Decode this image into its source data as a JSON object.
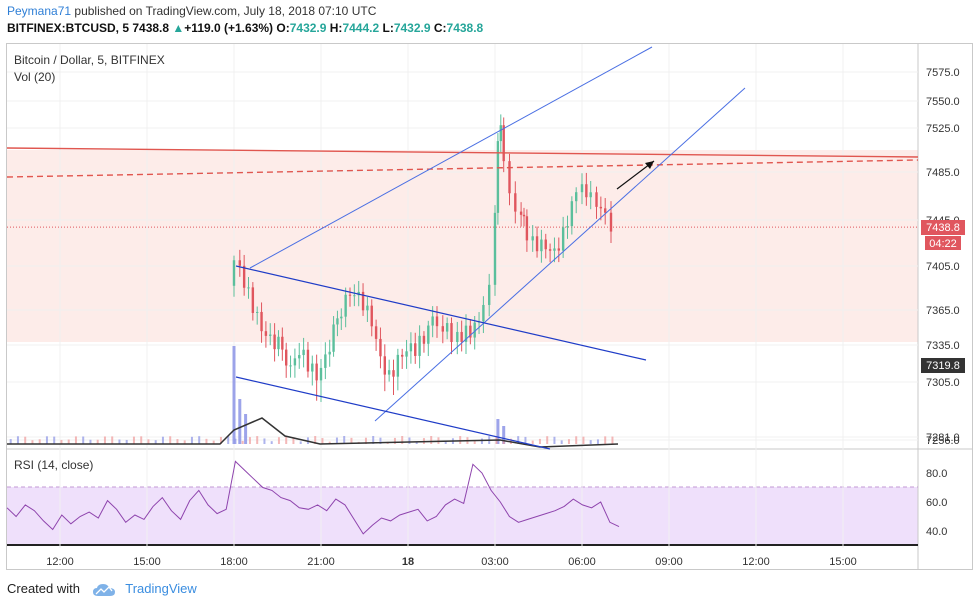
{
  "header": {
    "author": "Peymana71",
    "published": "published on TradingView.com, July 18, 2018 07:10 UTC",
    "symbol": "BITFINEX:BTCUSD, 5",
    "last": "7438.8",
    "up_arrow": "▲",
    "change": "+119.0 (+1.63%)",
    "o_label": "O:",
    "o": "7432.9",
    "h_label": "H:",
    "h": "7444.2",
    "l_label": "L:",
    "l": "7432.9",
    "c_label": "C:",
    "c": "7438.8"
  },
  "chart_titles": {
    "main": "Bitcoin / Dollar, 5, BITFINEX",
    "volume": "Vol (20)",
    "rsi": "RSI (14, close)"
  },
  "price_badges": {
    "last_price": "7438.8",
    "countdown": "04:22",
    "level": "7319.8"
  },
  "footer": {
    "created_with": "Created with",
    "brand": "TradingView"
  },
  "colors": {
    "bull": "#5bbf9c",
    "bear": "#e0565e",
    "volume_bull": "#8c94e6",
    "volume_bear": "#ef9a9a",
    "trend_blue": "#4a6fe3",
    "resistance_red": "#e0564f",
    "rsi_line": "#8e44ad",
    "rsi_band": "#efe0fb"
  },
  "chart_data": [
    {
      "type": "candlestick",
      "title": "Bitcoin / Dollar, 5, BITFINEX",
      "x_ticks": [
        "12:00",
        "15:00",
        "18:00",
        "21:00",
        "18",
        "03:00",
        "06:00",
        "09:00",
        "12:00",
        "15:00"
      ],
      "y_ticks": [
        7256.0,
        7281.0,
        7305.0,
        7335.0,
        7365.0,
        7405.0,
        7445.0,
        7485.0,
        7525.0,
        7550.0,
        7575.0
      ],
      "close_path": [
        [
          18.0,
          7395
        ],
        [
          18.2,
          7410
        ],
        [
          18.5,
          7385
        ],
        [
          18.8,
          7370
        ],
        [
          19.1,
          7355
        ],
        [
          19.4,
          7345
        ],
        [
          19.8,
          7330
        ],
        [
          20.1,
          7310
        ],
        [
          20.4,
          7325
        ],
        [
          20.7,
          7320
        ],
        [
          21.0,
          7315
        ],
        [
          21.3,
          7330
        ],
        [
          21.7,
          7355
        ],
        [
          22.0,
          7370
        ],
        [
          22.3,
          7375
        ],
        [
          22.6,
          7370
        ],
        [
          22.9,
          7360
        ],
        [
          23.2,
          7330
        ],
        [
          23.5,
          7310
        ],
        [
          23.8,
          7318
        ],
        [
          24.1,
          7325
        ],
        [
          24.4,
          7330
        ],
        [
          24.7,
          7345
        ],
        [
          25.0,
          7365
        ],
        [
          25.2,
          7360
        ],
        [
          25.5,
          7345
        ],
        [
          25.7,
          7335
        ],
        [
          26.0,
          7340
        ],
        [
          26.3,
          7350
        ],
        [
          26.6,
          7362
        ],
        [
          26.8,
          7378
        ],
        [
          27.0,
          7395
        ],
        [
          27.1,
          7450
        ],
        [
          27.2,
          7505
        ],
        [
          27.3,
          7520
        ],
        [
          27.5,
          7495
        ],
        [
          27.7,
          7475
        ],
        [
          27.9,
          7460
        ],
        [
          28.1,
          7440
        ],
        [
          28.3,
          7420
        ],
        [
          28.6,
          7425
        ],
        [
          28.9,
          7428
        ],
        [
          29.2,
          7422
        ],
        [
          29.5,
          7432
        ],
        [
          29.8,
          7452
        ],
        [
          30.0,
          7462
        ],
        [
          30.3,
          7470
        ],
        [
          30.5,
          7465
        ],
        [
          30.8,
          7458
        ],
        [
          31.0,
          7460
        ],
        [
          31.05,
          7438.8
        ]
      ],
      "last_price": 7438.8,
      "horizontal_levels": [
        7319.8
      ]
    },
    {
      "type": "bar",
      "title": "Vol (20)",
      "notes": "volume spikes near 18:00 and 03:00"
    },
    {
      "type": "line",
      "title": "RSI (14, close)",
      "y_ticks": [
        40.0,
        60.0,
        80.0
      ],
      "band": [
        30,
        70
      ],
      "values": [
        56,
        50,
        58,
        54,
        47,
        41,
        51,
        45,
        50,
        53,
        49,
        61,
        55,
        46,
        51,
        48,
        57,
        63,
        54,
        48,
        61,
        68,
        58,
        52,
        55,
        88,
        82,
        76,
        70,
        68,
        63,
        61,
        56,
        55,
        58,
        54,
        62,
        58,
        48,
        38,
        44,
        49,
        47,
        51,
        53,
        55,
        47,
        50,
        58,
        62,
        59,
        86,
        80,
        68,
        60,
        50,
        46,
        48,
        50,
        52,
        54,
        57,
        62,
        58,
        56,
        60,
        46,
        43
      ]
    }
  ]
}
